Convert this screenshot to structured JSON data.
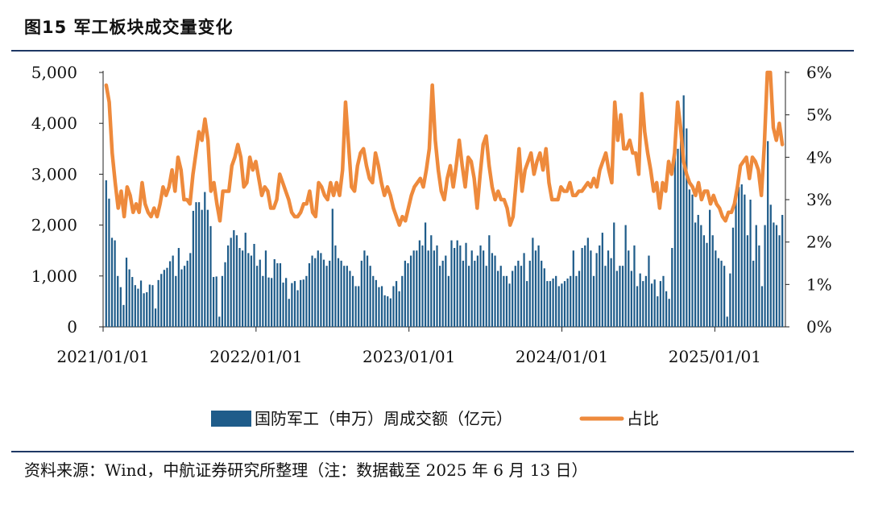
{
  "title": "图15  军工板块成交量变化",
  "source": "资料来源：Wind，中航证券研究所整理（注：数据截至 2025 年 6 月 13 日）",
  "chart_data": {
    "type": "bar+line",
    "left_axis": {
      "ylim": [
        0,
        5000
      ],
      "ticks": [
        "0",
        "1,000",
        "2,000",
        "3,000",
        "4,000",
        "5,000"
      ]
    },
    "right_axis": {
      "ylim": [
        0,
        6
      ],
      "ticks": [
        "0%",
        "1%",
        "2%",
        "3%",
        "4%",
        "5%",
        "6%"
      ]
    },
    "x_range_weeks": [
      0,
      232
    ],
    "x_ticks": [
      {
        "label": "2021/01/01",
        "week": 0
      },
      {
        "label": "2022/01/01",
        "week": 52
      },
      {
        "label": "2023/01/01",
        "week": 104
      },
      {
        "label": "2024/01/01",
        "week": 156
      },
      {
        "label": "2025/01/01",
        "week": 208
      }
    ],
    "series": [
      {
        "name": "国防军工（申万）周成交额（亿元）",
        "kind": "bar",
        "color": "#1f5c8a",
        "values": [
          2880,
          2520,
          1750,
          1700,
          1000,
          780,
          430,
          1360,
          1130,
          980,
          820,
          750,
          910,
          660,
          680,
          830,
          820,
          360,
          920,
          1040,
          1120,
          1160,
          1290,
          1400,
          1000,
          1550,
          1130,
          1200,
          1300,
          1450,
          2280,
          2450,
          2450,
          2300,
          2650,
          2300,
          1980,
          980,
          990,
          200,
          1000,
          1270,
          1600,
          1750,
          1900,
          1800,
          1550,
          1500,
          1850,
          1450,
          1400,
          1630,
          1200,
          1320,
          1000,
          1500,
          970,
          960,
          1330,
          1250,
          1250,
          870,
          960,
          550,
          860,
          900,
          720,
          920,
          930,
          1000,
          1250,
          1400,
          1350,
          1500,
          1450,
          1320,
          1200,
          1300,
          2320,
          1600,
          1350,
          1300,
          1200,
          1200,
          1100,
          1000,
          800,
          800,
          1300,
          1500,
          1400,
          1200,
          1000,
          920,
          780,
          800,
          620,
          600,
          560,
          800,
          900,
          700,
          1000,
          1300,
          1250,
          1400,
          1500,
          1500,
          1700,
          1600,
          2050,
          1500,
          1800,
          1500,
          1600,
          1200,
          1300,
          1400,
          1000,
          1700,
          1550,
          1700,
          1600,
          1300,
          1650,
          1200,
          1500,
          1300,
          1400,
          1600,
          1500,
          1200,
          1800,
          1450,
          1400,
          1100,
          1200,
          1000,
          1000,
          850,
          1100,
          1200,
          1300,
          1200,
          1450,
          900,
          1300,
          1750,
          1500,
          1600,
          1300,
          1150,
          900,
          900,
          950,
          1000,
          800,
          850,
          900,
          950,
          1000,
          1500,
          1000,
          1100,
          1550,
          1600,
          1750,
          1500,
          1000,
          1450,
          1600,
          1850,
          1200,
          1500,
          1350,
          2050,
          1100,
          1200,
          1200,
          2000,
          1500,
          1100,
          1600,
          800,
          1050,
          900,
          1000,
          1400,
          850,
          930,
          600,
          900,
          1000,
          700,
          550,
          1550,
          3400,
          3500,
          3800,
          4550,
          3900,
          2700,
          2600,
          2050,
          2200,
          2000,
          1800,
          1650,
          2300,
          1800,
          1500,
          1350,
          1300,
          1200,
          200,
          1050,
          1950,
          2500,
          2750,
          2800,
          2600,
          1800,
          2500,
          1300,
          2000,
          1600,
          800,
          2000,
          3650,
          2400,
          2050,
          2000,
          1800,
          2200
        ]
      },
      {
        "name": "占比",
        "kind": "line",
        "color": "#ee8a3c",
        "values": [
          5.7,
          5.3,
          4.1,
          3.4,
          2.8,
          3.2,
          2.6,
          3.3,
          3.1,
          2.7,
          2.9,
          2.7,
          3.4,
          2.9,
          2.7,
          2.6,
          2.8,
          2.6,
          2.9,
          3.3,
          3.1,
          3.3,
          3.7,
          3.2,
          4.0,
          3.7,
          3.0,
          3.0,
          2.9,
          3.6,
          4.1,
          4.6,
          4.4,
          4.9,
          4.4,
          3.2,
          3.4,
          2.9,
          2.5,
          3.2,
          3.2,
          3.2,
          3.8,
          4.0,
          4.3,
          4.0,
          3.3,
          3.4,
          4.0,
          3.7,
          3.9,
          3.5,
          3.1,
          3.3,
          3.2,
          2.8,
          2.8,
          3.0,
          3.6,
          3.4,
          3.2,
          3.0,
          2.7,
          2.6,
          2.6,
          2.7,
          2.9,
          2.9,
          3.2,
          2.7,
          2.6,
          3.4,
          3.3,
          3.1,
          3.0,
          3.4,
          3.1,
          3.4,
          3.1,
          3.7,
          5.3,
          4.3,
          3.3,
          3.2,
          3.8,
          4.1,
          4.2,
          3.8,
          3.5,
          3.4,
          4.1,
          3.8,
          3.4,
          3.1,
          3.3,
          3.1,
          2.8,
          2.6,
          2.4,
          2.6,
          2.5,
          2.8,
          3.1,
          3.3,
          3.4,
          3.5,
          3.3,
          3.7,
          4.2,
          5.7,
          4.4,
          3.7,
          3.2,
          3.0,
          3.5,
          3.8,
          3.3,
          3.8,
          4.4,
          3.8,
          3.3,
          4.0,
          3.9,
          3.5,
          2.8,
          3.6,
          4.3,
          4.5,
          3.8,
          3.3,
          3.0,
          3.2,
          3.0,
          3.0,
          2.8,
          2.4,
          2.6,
          3.4,
          4.2,
          3.2,
          3.7,
          3.9,
          4.1,
          3.6,
          3.9,
          4.1,
          3.7,
          4.2,
          3.4,
          3.0,
          3.0,
          3.0,
          3.3,
          3.2,
          3.2,
          3.4,
          3.1,
          3.1,
          3.2,
          3.2,
          3.3,
          3.4,
          3.3,
          3.5,
          3.3,
          3.7,
          3.9,
          4.1,
          3.7,
          3.4,
          5.3,
          4.4,
          5.0,
          4.2,
          4.2,
          4.4,
          4.1,
          4.1,
          3.6,
          5.5,
          4.6,
          4.1,
          3.7,
          3.2,
          3.4,
          2.8,
          3.4,
          3.2,
          3.9,
          3.6,
          4.1,
          5.3,
          4.7,
          3.9,
          3.6,
          3.4,
          3.3,
          3.1,
          3.4,
          3.0,
          3.2,
          3.2,
          2.9,
          3.1,
          2.9,
          2.8,
          2.6,
          2.5,
          2.7,
          2.7,
          2.9,
          3.3,
          3.8,
          3.9,
          4.0,
          3.5,
          4.0,
          3.9,
          3.7,
          3.1,
          4.3,
          6.0,
          6.0,
          4.7,
          4.4,
          4.8,
          4.3
        ]
      }
    ],
    "legend": [
      {
        "label": "国防军工（申万）周成交额（亿元）",
        "marker": "bar"
      },
      {
        "label": "占比",
        "marker": "line"
      }
    ],
    "legend_position": "bottom-center"
  }
}
